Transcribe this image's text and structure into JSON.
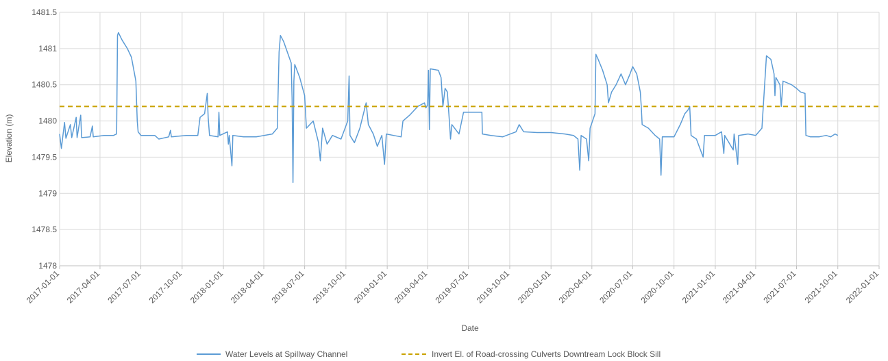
{
  "chart_data": {
    "type": "line",
    "title": "",
    "xlabel": "Date",
    "ylabel": "Elevation (m)",
    "ylim": [
      1478,
      1481.5
    ],
    "y_ticks": [
      "1478",
      "1478.5",
      "1479",
      "1479.5",
      "1480",
      "1480.5",
      "1481",
      "1481.5"
    ],
    "x_range": [
      "2017-01-01",
      "2022-01-01"
    ],
    "x_ticks": [
      "2017-01-01",
      "2017-04-01",
      "2017-07-01",
      "2017-10-01",
      "2018-01-01",
      "2018-04-01",
      "2018-07-01",
      "2018-10-01",
      "2019-01-01",
      "2019-04-01",
      "2019-07-01",
      "2019-10-01",
      "2020-01-01",
      "2020-04-01",
      "2020-07-01",
      "2020-10-01",
      "2021-01-01",
      "2021-04-01",
      "2021-07-01",
      "2021-10-01",
      "2022-01-01"
    ],
    "grid": "vertical and horizontal",
    "legend_position": "bottom",
    "series": [
      {
        "name": "Water Levels at Spillway Channel",
        "color": "#5b9bd5",
        "style": "solid",
        "points": [
          [
            "2017-01-01",
            1479.82
          ],
          [
            "2017-01-05",
            1479.62
          ],
          [
            "2017-01-08",
            1479.78
          ],
          [
            "2017-01-12",
            1479.98
          ],
          [
            "2017-01-15",
            1479.76
          ],
          [
            "2017-01-25",
            1479.95
          ],
          [
            "2017-01-28",
            1479.77
          ],
          [
            "2017-02-07",
            1480.05
          ],
          [
            "2017-02-09",
            1479.77
          ],
          [
            "2017-02-17",
            1480.08
          ],
          [
            "2017-02-19",
            1479.77
          ],
          [
            "2017-03-10",
            1479.78
          ],
          [
            "2017-03-15",
            1479.93
          ],
          [
            "2017-03-17",
            1479.78
          ],
          [
            "2017-04-10",
            1479.8
          ],
          [
            "2017-05-01",
            1479.8
          ],
          [
            "2017-05-08",
            1479.82
          ],
          [
            "2017-05-10",
            1481.18
          ],
          [
            "2017-05-12",
            1481.22
          ],
          [
            "2017-05-20",
            1481.12
          ],
          [
            "2017-06-01",
            1481.0
          ],
          [
            "2017-06-10",
            1480.88
          ],
          [
            "2017-06-20",
            1480.55
          ],
          [
            "2017-06-23",
            1480.0
          ],
          [
            "2017-06-25",
            1479.85
          ],
          [
            "2017-07-01",
            1479.8
          ],
          [
            "2017-08-01",
            1479.8
          ],
          [
            "2017-08-10",
            1479.75
          ],
          [
            "2017-09-01",
            1479.78
          ],
          [
            "2017-09-05",
            1479.87
          ],
          [
            "2017-09-07",
            1479.78
          ],
          [
            "2017-10-10",
            1479.8
          ],
          [
            "2017-11-05",
            1479.8
          ],
          [
            "2017-11-10",
            1480.05
          ],
          [
            "2017-11-20",
            1480.1
          ],
          [
            "2017-11-26",
            1480.38
          ],
          [
            "2017-11-28",
            1480.05
          ],
          [
            "2017-12-01",
            1479.8
          ],
          [
            "2017-12-20",
            1479.78
          ],
          [
            "2017-12-22",
            1480.12
          ],
          [
            "2017-12-24",
            1479.8
          ],
          [
            "2018-01-10",
            1479.85
          ],
          [
            "2018-01-12",
            1479.68
          ],
          [
            "2018-01-14",
            1479.8
          ],
          [
            "2018-01-20",
            1479.38
          ],
          [
            "2018-01-22",
            1479.8
          ],
          [
            "2018-02-15",
            1479.78
          ],
          [
            "2018-03-15",
            1479.78
          ],
          [
            "2018-04-20",
            1479.82
          ],
          [
            "2018-05-01",
            1479.9
          ],
          [
            "2018-05-05",
            1480.95
          ],
          [
            "2018-05-08",
            1481.18
          ],
          [
            "2018-05-15",
            1481.1
          ],
          [
            "2018-06-01",
            1480.8
          ],
          [
            "2018-06-03",
            1480.3
          ],
          [
            "2018-06-05",
            1479.15
          ],
          [
            "2018-06-07",
            1480.55
          ],
          [
            "2018-06-09",
            1480.78
          ],
          [
            "2018-06-20",
            1480.6
          ],
          [
            "2018-07-01",
            1480.35
          ],
          [
            "2018-07-05",
            1479.9
          ],
          [
            "2018-07-20",
            1480.0
          ],
          [
            "2018-08-01",
            1479.7
          ],
          [
            "2018-08-05",
            1479.45
          ],
          [
            "2018-08-10",
            1479.9
          ],
          [
            "2018-08-20",
            1479.68
          ],
          [
            "2018-09-01",
            1479.8
          ],
          [
            "2018-09-20",
            1479.75
          ],
          [
            "2018-10-05",
            1480.0
          ],
          [
            "2018-10-08",
            1480.62
          ],
          [
            "2018-10-10",
            1479.8
          ],
          [
            "2018-10-20",
            1479.7
          ],
          [
            "2018-11-01",
            1479.9
          ],
          [
            "2018-11-15",
            1480.25
          ],
          [
            "2018-11-20",
            1479.95
          ],
          [
            "2018-12-01",
            1479.82
          ],
          [
            "2018-12-10",
            1479.65
          ],
          [
            "2018-12-20",
            1479.8
          ],
          [
            "2018-12-26",
            1479.4
          ],
          [
            "2018-12-30",
            1479.82
          ],
          [
            "2019-01-15",
            1479.8
          ],
          [
            "2019-02-01",
            1479.78
          ],
          [
            "2019-02-05",
            1480.0
          ],
          [
            "2019-02-20",
            1480.08
          ],
          [
            "2019-03-10",
            1480.2
          ],
          [
            "2019-03-25",
            1480.25
          ],
          [
            "2019-03-28",
            1480.18
          ],
          [
            "2019-04-01",
            1480.22
          ],
          [
            "2019-04-03",
            1480.7
          ],
          [
            "2019-04-05",
            1479.88
          ],
          [
            "2019-04-07",
            1480.72
          ],
          [
            "2019-04-25",
            1480.7
          ],
          [
            "2019-05-01",
            1480.6
          ],
          [
            "2019-05-05",
            1480.2
          ],
          [
            "2019-05-10",
            1480.45
          ],
          [
            "2019-05-15",
            1480.4
          ],
          [
            "2019-05-20",
            1479.95
          ],
          [
            "2019-05-22",
            1479.75
          ],
          [
            "2019-05-25",
            1479.95
          ],
          [
            "2019-06-10",
            1479.82
          ],
          [
            "2019-06-20",
            1480.12
          ],
          [
            "2019-07-01",
            1480.12
          ],
          [
            "2019-07-31",
            1480.12
          ],
          [
            "2019-08-01",
            1479.82
          ],
          [
            "2019-08-20",
            1479.8
          ],
          [
            "2019-09-15",
            1479.78
          ],
          [
            "2019-10-15",
            1479.85
          ],
          [
            "2019-10-22",
            1479.95
          ],
          [
            "2019-11-01",
            1479.85
          ],
          [
            "2019-12-01",
            1479.84
          ],
          [
            "2020-01-01",
            1479.84
          ],
          [
            "2020-02-01",
            1479.82
          ],
          [
            "2020-02-20",
            1479.8
          ],
          [
            "2020-03-01",
            1479.75
          ],
          [
            "2020-03-05",
            1479.32
          ],
          [
            "2020-03-08",
            1479.8
          ],
          [
            "2020-03-20",
            1479.75
          ],
          [
            "2020-03-25",
            1479.45
          ],
          [
            "2020-03-28",
            1479.9
          ],
          [
            "2020-04-08",
            1480.1
          ],
          [
            "2020-04-10",
            1480.92
          ],
          [
            "2020-04-15",
            1480.85
          ],
          [
            "2020-04-25",
            1480.7
          ],
          [
            "2020-05-05",
            1480.5
          ],
          [
            "2020-05-08",
            1480.25
          ],
          [
            "2020-05-15",
            1480.4
          ],
          [
            "2020-05-25",
            1480.5
          ],
          [
            "2020-06-05",
            1480.65
          ],
          [
            "2020-06-15",
            1480.5
          ],
          [
            "2020-06-25",
            1480.65
          ],
          [
            "2020-07-01",
            1480.75
          ],
          [
            "2020-07-10",
            1480.65
          ],
          [
            "2020-07-18",
            1480.4
          ],
          [
            "2020-07-20",
            1480.2
          ],
          [
            "2020-07-22",
            1479.95
          ],
          [
            "2020-08-05",
            1479.9
          ],
          [
            "2020-08-20",
            1479.8
          ],
          [
            "2020-08-30",
            1479.75
          ],
          [
            "2020-09-02",
            1479.25
          ],
          [
            "2020-09-05",
            1479.78
          ],
          [
            "2020-10-01",
            1479.78
          ],
          [
            "2020-10-15",
            1479.95
          ],
          [
            "2020-10-25",
            1480.1
          ],
          [
            "2020-11-01",
            1480.15
          ],
          [
            "2020-11-05",
            1480.2
          ],
          [
            "2020-11-08",
            1479.8
          ],
          [
            "2020-11-20",
            1479.75
          ],
          [
            "2020-12-05",
            1479.5
          ],
          [
            "2020-12-08",
            1479.8
          ],
          [
            "2021-01-01",
            1479.8
          ],
          [
            "2021-01-15",
            1479.85
          ],
          [
            "2021-01-20",
            1479.55
          ],
          [
            "2021-01-22",
            1479.8
          ],
          [
            "2021-02-10",
            1479.6
          ],
          [
            "2021-02-12",
            1479.82
          ],
          [
            "2021-02-20",
            1479.4
          ],
          [
            "2021-02-22",
            1479.8
          ],
          [
            "2021-03-15",
            1479.82
          ],
          [
            "2021-04-01",
            1479.8
          ],
          [
            "2021-04-15",
            1479.9
          ],
          [
            "2021-04-25",
            1480.9
          ],
          [
            "2021-05-05",
            1480.85
          ],
          [
            "2021-05-12",
            1480.65
          ],
          [
            "2021-05-14",
            1480.35
          ],
          [
            "2021-05-16",
            1480.6
          ],
          [
            "2021-05-25",
            1480.5
          ],
          [
            "2021-05-28",
            1480.2
          ],
          [
            "2021-06-01",
            1480.55
          ],
          [
            "2021-06-20",
            1480.5
          ],
          [
            "2021-07-01",
            1480.45
          ],
          [
            "2021-07-10",
            1480.4
          ],
          [
            "2021-07-20",
            1480.38
          ],
          [
            "2021-07-22",
            1479.8
          ],
          [
            "2021-08-01",
            1479.78
          ],
          [
            "2021-08-20",
            1479.78
          ],
          [
            "2021-09-05",
            1479.8
          ],
          [
            "2021-09-15",
            1479.78
          ],
          [
            "2021-09-25",
            1479.82
          ],
          [
            "2021-10-01",
            1479.8
          ]
        ]
      },
      {
        "name": "Invert El. of Road-crossing Culverts Downtream Lock Block Sill",
        "color": "#c9a100",
        "style": "dashed",
        "points": [
          [
            "2017-01-01",
            1480.2
          ],
          [
            "2022-01-01",
            1480.2
          ]
        ]
      }
    ]
  }
}
